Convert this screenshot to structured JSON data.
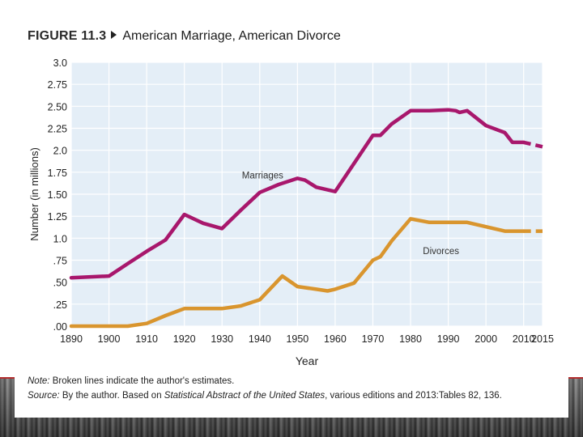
{
  "figure": {
    "label": "FIGURE 11.3",
    "title": "American Marriage, American Divorce"
  },
  "notes": {
    "note_label": "Note:",
    "note_text": "Broken lines indicate the author's estimates.",
    "source_label": "Source:",
    "source_text": "By the author. Based on ",
    "source_italic": "Statistical Abstract of the United States",
    "source_tail": ", various editions and 2013:Tables 82, 136."
  },
  "colors": {
    "marriages": "#a8176c",
    "divorces": "#d9952e",
    "plot_bg": "#e4eef7",
    "grid": "#ffffff"
  },
  "chart_data": {
    "type": "line",
    "title": "American Marriage, American Divorce",
    "xlabel": "Year",
    "ylabel": "Number (in millions)",
    "xlim": [
      1890,
      2015
    ],
    "ylim": [
      0,
      3.0
    ],
    "xticks": [
      1890,
      1900,
      1910,
      1920,
      1930,
      1940,
      1950,
      1960,
      1970,
      1980,
      1990,
      2000,
      2010,
      2015
    ],
    "xtick_labels": [
      "1890",
      "1900",
      "1910",
      "1920",
      "1930",
      "1940",
      "1950",
      "1960",
      "1970",
      "1980",
      "1990",
      "2000",
      "2010",
      "2015"
    ],
    "yticks": [
      0,
      0.25,
      0.5,
      0.75,
      1.0,
      1.25,
      1.5,
      1.75,
      2.0,
      2.25,
      2.5,
      2.75,
      3.0
    ],
    "ytick_labels": [
      ".00",
      ".25",
      ".50",
      ".75",
      "1.0",
      "1.25",
      "1.50",
      "1.75",
      "2.0",
      "2.25",
      "2.50",
      "2.75",
      "3.0"
    ],
    "grid": true,
    "series": [
      {
        "name": "Marriages",
        "key": "marriages",
        "label_at": [
          1940,
          1.68
        ],
        "x": [
          1890,
          1900,
          1905,
          1910,
          1915,
          1920,
          1925,
          1930,
          1935,
          1940,
          1945,
          1950,
          1952,
          1955,
          1960,
          1965,
          1970,
          1972,
          1975,
          1980,
          1985,
          1990,
          1992,
          1993,
          1995,
          2000,
          2005,
          2007,
          2010
        ],
        "values": [
          0.55,
          0.57,
          0.71,
          0.85,
          0.98,
          1.27,
          1.17,
          1.11,
          1.32,
          1.52,
          1.61,
          1.68,
          1.66,
          1.58,
          1.53,
          1.85,
          2.17,
          2.17,
          2.3,
          2.45,
          2.45,
          2.46,
          2.45,
          2.43,
          2.45,
          2.28,
          2.2,
          2.09,
          2.09
        ],
        "estimate_x": [
          2010,
          2015
        ],
        "estimate_values": [
          2.09,
          2.04
        ]
      },
      {
        "name": "Divorces",
        "key": "divorces",
        "label_at": [
          1988,
          0.82
        ],
        "x": [
          1890,
          1900,
          1905,
          1910,
          1915,
          1920,
          1925,
          1930,
          1935,
          1940,
          1946,
          1950,
          1955,
          1958,
          1960,
          1965,
          1970,
          1972,
          1975,
          1980,
          1985,
          1990,
          1995,
          2000,
          2005,
          2010
        ],
        "values": [
          0.0,
          0.0,
          0.0,
          0.03,
          0.12,
          0.2,
          0.2,
          0.2,
          0.23,
          0.3,
          0.57,
          0.45,
          0.42,
          0.4,
          0.42,
          0.49,
          0.75,
          0.79,
          0.97,
          1.22,
          1.18,
          1.18,
          1.18,
          1.13,
          1.08,
          1.08
        ],
        "estimate_x": [
          2010,
          2015
        ],
        "estimate_values": [
          1.08,
          1.08
        ]
      }
    ]
  }
}
